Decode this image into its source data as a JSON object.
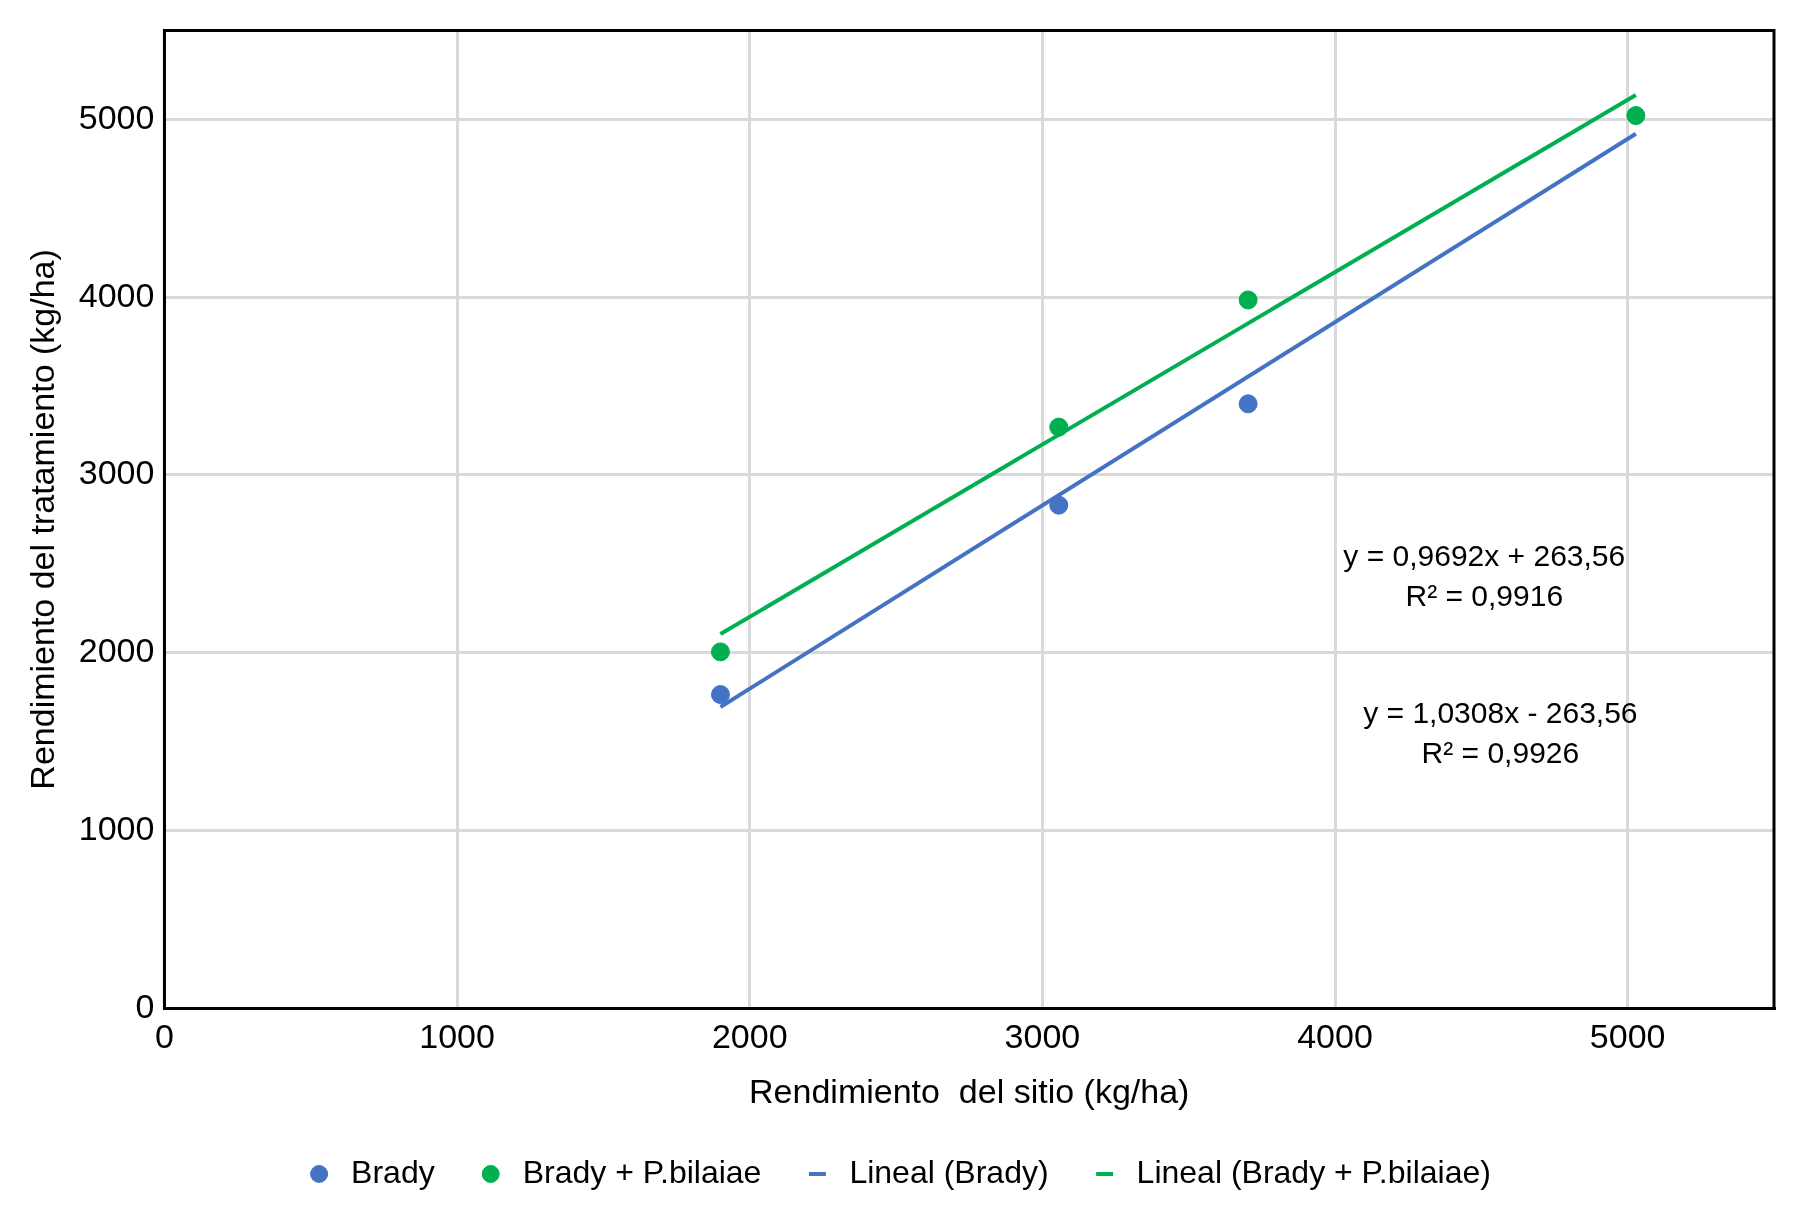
{
  "chart_data": {
    "type": "scatter",
    "xlabel": "Rendimiento  del sitio (kg/ha)",
    "ylabel": "Rendimiento del tratamiento (kg/ha)",
    "xlim": [
      0,
      5500
    ],
    "xticks": [
      0,
      1000,
      2000,
      3000,
      4000,
      5000
    ],
    "ylim": [
      0,
      5500
    ],
    "yticks": [
      0,
      1000,
      2000,
      3000,
      4000,
      5000
    ],
    "grid": true,
    "legend": "bottom",
    "series": [
      {
        "name": "Brady",
        "marker": "circle",
        "color": "#4472c4",
        "x": [
          1900,
          3056,
          3703
        ],
        "values": [
          1765,
          2830,
          3400
        ]
      },
      {
        "name": "Brady + P.bilaiae",
        "marker": "circle",
        "color": "#00b050",
        "x": [
          1900,
          3056,
          3703,
          5028
        ],
        "values": [
          2005,
          3269,
          3984,
          5021
        ]
      },
      {
        "name": "Lineal (Brady)",
        "type": "line",
        "marker": "none",
        "color": "#4472c4",
        "x": [
          1900,
          5028
        ],
        "values": [
          1695,
          4919
        ]
      },
      {
        "name": "Lineal (Brady + P.bilaiae)",
        "type": "line",
        "marker": "none",
        "color": "#00b050",
        "x": [
          1900,
          5028
        ],
        "values": [
          2105,
          5137
        ]
      }
    ],
    "annotations": [
      "y = 0,9692x + 263,56\nR² = 0,9916",
      "y = 1,0308x - 263,56\nR² = 0,9926"
    ]
  }
}
